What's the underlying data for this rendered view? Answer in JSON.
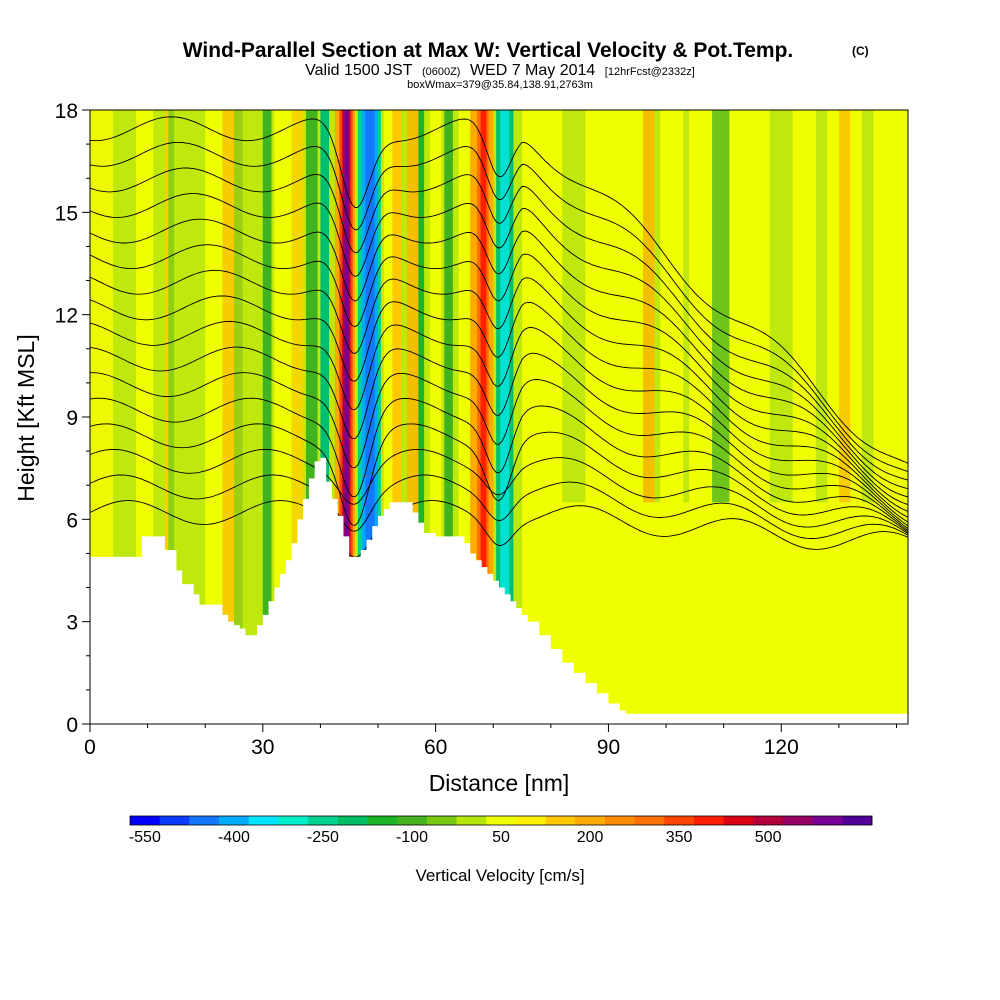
{
  "header": {
    "title": "Wind-Parallel Section at Max W: Vertical Velocity & Pot.Temp.",
    "title_mark": "(C)",
    "valid_prefix": "Valid 1500 JST",
    "valid_utc": "(0600Z)",
    "valid_date": "WED 7 May 2014",
    "forecast": "[12hrFcst@2332z]",
    "box_info": "boxWmax=379@35.84,138.91,2763m"
  },
  "chart_data": {
    "type": "heatmap",
    "xlabel": "Distance [nm]",
    "ylabel": "Height [Kft MSL]",
    "xlim": [
      0,
      142
    ],
    "ylim": [
      0,
      18
    ],
    "x_ticks": [
      0,
      30,
      60,
      90,
      120
    ],
    "y_ticks": [
      0,
      3,
      6,
      9,
      12,
      15,
      18
    ],
    "field": "Vertical Velocity [cm/s]",
    "contours": "Potential temperature isotherms (black lines)",
    "terrain_profile": {
      "x": [
        0,
        8,
        9,
        12,
        13,
        15,
        16,
        18,
        19,
        20,
        23,
        24,
        25,
        26,
        27,
        29,
        30,
        31,
        32,
        33,
        34,
        35,
        36,
        37,
        38,
        39,
        40,
        41,
        42,
        43,
        44,
        45,
        46,
        47,
        48,
        49,
        50,
        51,
        52,
        54,
        56,
        57,
        58,
        60,
        62,
        64,
        65,
        66,
        67,
        68,
        69,
        70,
        71,
        72,
        73,
        74,
        75,
        76,
        78,
        80,
        82,
        84,
        86,
        88,
        90,
        92,
        93,
        95,
        142
      ],
      "height_kft": [
        4.9,
        4.9,
        5.5,
        5.5,
        5.1,
        4.5,
        4.1,
        3.8,
        3.5,
        3.5,
        3.2,
        3.0,
        2.9,
        2.8,
        2.6,
        2.9,
        3.2,
        3.6,
        4.0,
        4.4,
        4.8,
        5.3,
        6.0,
        6.6,
        7.2,
        7.7,
        7.8,
        7.1,
        6.6,
        6.1,
        5.5,
        4.9,
        4.9,
        5.1,
        5.4,
        5.8,
        6.1,
        6.3,
        6.5,
        6.5,
        6.2,
        5.9,
        5.6,
        5.5,
        5.5,
        5.5,
        5.3,
        5.0,
        4.8,
        4.6,
        4.4,
        4.2,
        4.0,
        3.8,
        3.6,
        3.4,
        3.2,
        3.0,
        2.6,
        2.2,
        1.8,
        1.5,
        1.2,
        0.9,
        0.6,
        0.4,
        0.3,
        0.3,
        0.3
      ]
    },
    "features": [
      {
        "name": "strong updraft",
        "x": 44.5,
        "w_cm_s": 550
      },
      {
        "name": "strong downdraft",
        "x": 48.5,
        "w_cm_s": -450
      },
      {
        "name": "updraft",
        "x": 68.5,
        "w_cm_s": 350
      },
      {
        "name": "downdraft",
        "x": 72,
        "w_cm_s": -200
      }
    ]
  },
  "colorbar": {
    "title": "Vertical Velocity [cm/s]",
    "labels": [
      "-550",
      "-400",
      "-250",
      "-100",
      "50",
      "200",
      "350",
      "500"
    ],
    "colors": [
      "#0000ff",
      "#0a3cff",
      "#1478ff",
      "#00aaff",
      "#00e5ff",
      "#00f0cc",
      "#00d290",
      "#00be64",
      "#1eb428",
      "#46b41e",
      "#78c814",
      "#b4e60a",
      "#f0ff00",
      "#fff000",
      "#ffc800",
      "#ffaa00",
      "#ff8c00",
      "#ff6e00",
      "#ff4600",
      "#ff1e00",
      "#dc0014",
      "#b4003c",
      "#960064",
      "#780096",
      "#500096"
    ]
  }
}
